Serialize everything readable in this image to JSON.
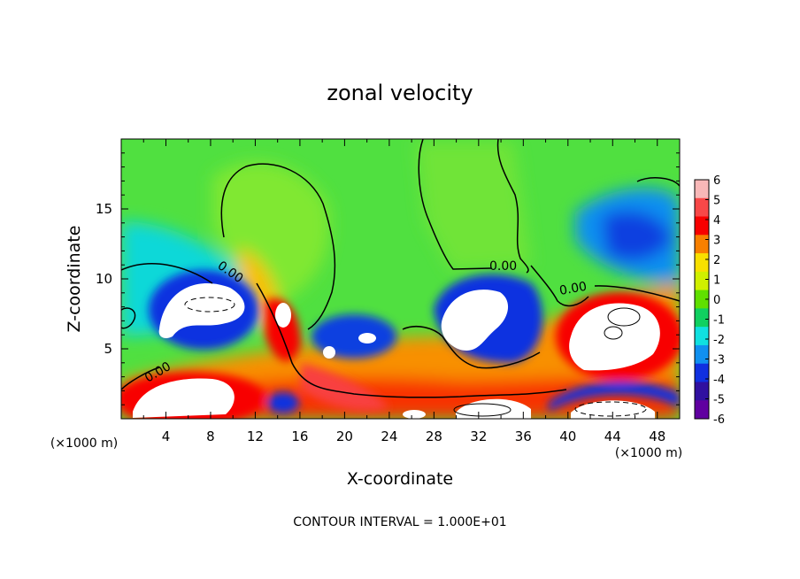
{
  "chart_data": {
    "type": "heatmap",
    "title": "zonal velocity",
    "xlabel": "X-coordinate",
    "ylabel": "Z-coordinate",
    "x_unit": "(×1000 m)",
    "footer": "CONTOUR INTERVAL = 1.000E+01",
    "xlim": [
      0,
      50
    ],
    "ylim": [
      0,
      20
    ],
    "xticks": [
      4,
      8,
      12,
      16,
      20,
      24,
      28,
      32,
      36,
      40,
      44,
      48
    ],
    "yticks": [
      5,
      10,
      15
    ],
    "colorbar": {
      "range": [
        -6,
        6
      ],
      "ticks": [
        6,
        5,
        4,
        3,
        2,
        1,
        0,
        -1,
        -2,
        -3,
        -4,
        -5,
        -6
      ],
      "colors": [
        "#f8b8b8",
        "#f84848",
        "#f80000",
        "#f88000",
        "#f8e000",
        "#d0f000",
        "#60e000",
        "#10d060",
        "#10e0e0",
        "#1090f0",
        "#1030e0",
        "#3010a0",
        "#6000a0"
      ]
    },
    "contour_labels": [
      "0.00",
      "0.00",
      "0.00",
      "0.00"
    ],
    "features": [
      {
        "label": "white patch (u > 6)",
        "x": [
          1,
          11
        ],
        "z": [
          0,
          2
        ]
      },
      {
        "label": "white patch (u < -6)",
        "x": [
          3,
          10
        ],
        "z": [
          6,
          10
        ]
      },
      {
        "label": "white patch (u < -6)",
        "x": [
          28,
          35
        ],
        "z": [
          5,
          9
        ]
      },
      {
        "label": "white patch (u > 6)",
        "x": [
          40,
          49
        ],
        "z": [
          3,
          8
        ]
      },
      {
        "label": "white patch (u > 6)",
        "x": [
          29,
          36
        ],
        "z": [
          0,
          1
        ]
      },
      {
        "label": "white patch (u > 6)",
        "x": [
          40,
          48
        ],
        "z": [
          0,
          1
        ]
      }
    ]
  }
}
